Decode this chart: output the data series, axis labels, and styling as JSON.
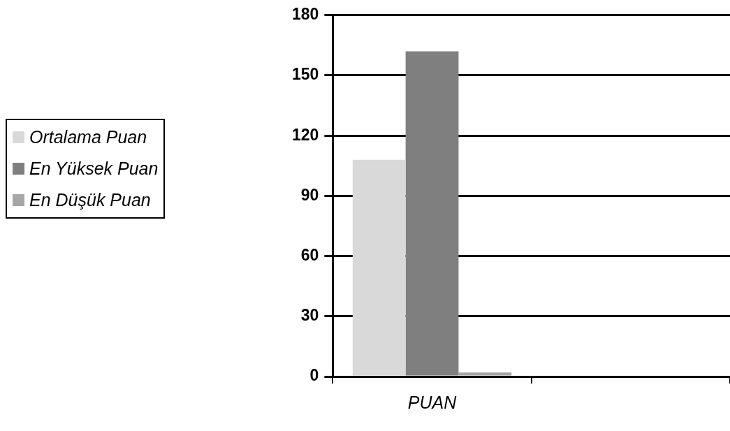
{
  "chart_data": {
    "type": "bar",
    "categories": [
      "PUAN",
      null
    ],
    "series": [
      {
        "name": "Ortalama Puan",
        "color": "#d9d9d9",
        "values": [
          108,
          null
        ]
      },
      {
        "name": "En Yüksek Puan",
        "color": "#7f7f7f",
        "values": [
          162,
          null
        ]
      },
      {
        "name": "En Düşük Puan",
        "color": "#a6a6a6",
        "values": [
          2,
          null
        ]
      }
    ],
    "ylim": [
      0,
      180
    ],
    "yticks": [
      0,
      30,
      60,
      90,
      120,
      150,
      180
    ],
    "grid": "y",
    "legend": "left"
  }
}
